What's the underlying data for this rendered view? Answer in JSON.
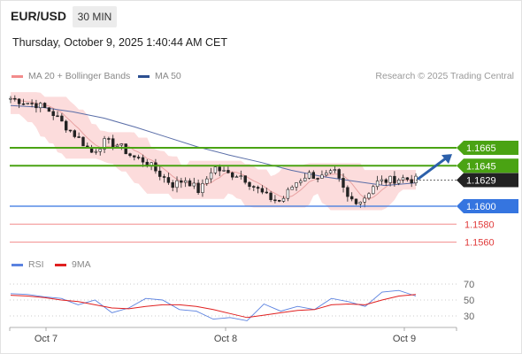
{
  "header": {
    "symbol": "EUR/USD",
    "timeframe": "30 MIN",
    "timestamp": "Thursday, October 9, 2025 1:40:44 AM CET"
  },
  "legend": {
    "ma20_label": "MA 20 + Bollinger Bands",
    "ma50_label": "MA 50",
    "credit": "Research © 2025 Trading Central",
    "rsi_label": "RSI",
    "ma9_label": "9MA"
  },
  "colors": {
    "bollinger_fill": "#fbd6d6",
    "ma20": "#e8a2a2",
    "ma50": "#5a6ea8",
    "resistance": "#4aa313",
    "support": "#3575e0",
    "target_line": "#f28b8b",
    "target_text": "#e03a3a",
    "arrow": "#2c60aa",
    "candle": "#222222",
    "rsi": "#5b82e0",
    "rsi_ma": "#e02020"
  },
  "chart_data": [
    {
      "type": "candlestick",
      "title": "EUR/USD 30 MIN",
      "x_labels": [
        "Oct 7",
        "Oct 8",
        "Oct 9"
      ],
      "current_price": 1.1629,
      "levels": [
        {
          "value": 1.1665,
          "label": "1.1665",
          "kind": "resistance"
        },
        {
          "value": 1.1645,
          "label": "1.1645",
          "kind": "resistance"
        },
        {
          "value": 1.1629,
          "label": "1.1629",
          "kind": "current"
        },
        {
          "value": 1.16,
          "label": "1.1600",
          "kind": "pivot"
        },
        {
          "value": 1.158,
          "label": "1.1580",
          "kind": "support"
        },
        {
          "value": 1.156,
          "label": "1.1560",
          "kind": "support"
        }
      ],
      "price_path": [
        1.172,
        1.1716,
        1.1713,
        1.1705,
        1.169,
        1.1676,
        1.166,
        1.1672,
        1.1668,
        1.1655,
        1.165,
        1.1636,
        1.1624,
        1.163,
        1.1616,
        1.1644,
        1.1636,
        1.1635,
        1.1622,
        1.161,
        1.1605,
        1.1625,
        1.1636,
        1.1632,
        1.1637,
        1.1608,
        1.1606,
        1.1626,
        1.1629,
        1.1631,
        1.1629
      ],
      "ma50_path": [
        1.1712,
        1.171,
        1.1705,
        1.1698,
        1.1688,
        1.1677,
        1.1666,
        1.1657,
        1.1649,
        1.164,
        1.1633,
        1.1628,
        1.1623,
        1.1626
      ],
      "projection": {
        "from": 1.1629,
        "to": 1.166
      }
    },
    {
      "type": "line",
      "title": "RSI",
      "series": [
        {
          "name": "RSI",
          "values": [
            58,
            57,
            54,
            52,
            44,
            50,
            34,
            40,
            52,
            50,
            38,
            36,
            26,
            28,
            24,
            45,
            36,
            42,
            38,
            52,
            48,
            42,
            60,
            62,
            55
          ]
        },
        {
          "name": "9MA",
          "values": [
            56,
            55,
            53,
            50,
            48,
            44,
            40,
            39,
            42,
            44,
            44,
            42,
            38,
            33,
            28,
            31,
            34,
            37,
            38,
            44,
            45,
            44,
            50,
            55,
            57
          ]
        }
      ],
      "yticks": [
        70,
        50,
        30
      ],
      "ylim": [
        20,
        80
      ]
    }
  ]
}
